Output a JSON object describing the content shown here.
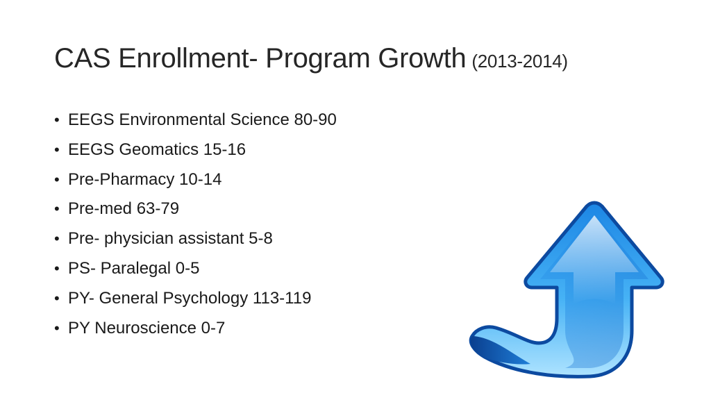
{
  "slide": {
    "title": "CAS Enrollment- Program Growth",
    "title_suffix": "(2013-2014)",
    "bullet_glyph": "•",
    "bullets": [
      "EEGS Environmental Science 80-90",
      "EEGS Geomatics 15-16",
      "Pre-Pharmacy 10-14",
      "Pre-med 63-79",
      "Pre- physician assistant 5-8",
      "PS- Paralegal 0-5",
      "PY- General Psychology 113-119",
      "PY Neuroscience 0-7"
    ],
    "image_icon": "up-arrow-icon",
    "colors": {
      "title_text": "#262626",
      "arrow_dark": "#0a4fa8",
      "arrow_mid": "#1d8ae6",
      "arrow_light": "#8fd3ff"
    }
  }
}
